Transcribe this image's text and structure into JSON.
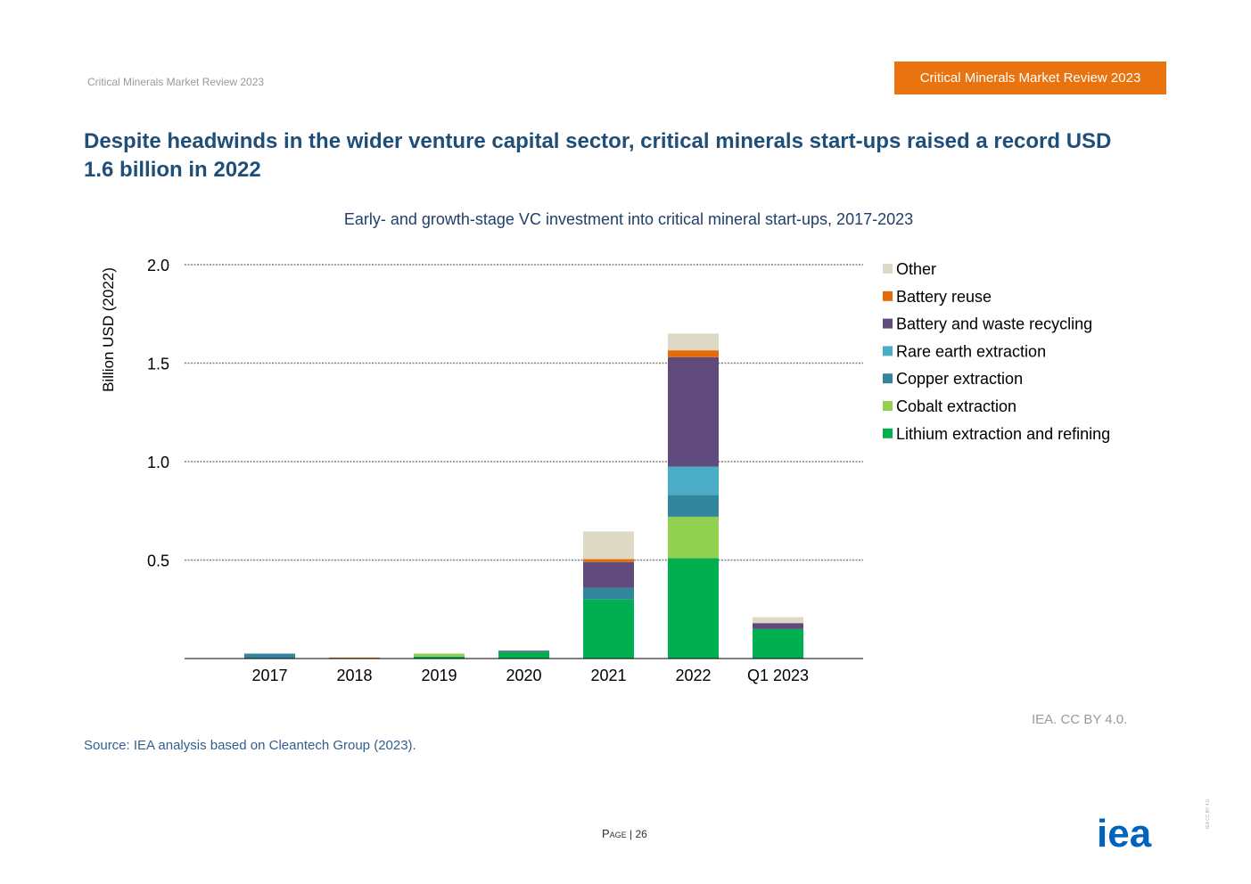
{
  "header": {
    "left_text": "Critical Minerals Market Review 2023",
    "badge_text": "Critical Minerals Market Review 2023",
    "badge_color": "#e8730f"
  },
  "title": "Despite headwinds in the wider venture capital sector, critical minerals start-ups raised a record USD 1.6 billion in 2022",
  "chart_data": {
    "type": "bar",
    "stacked": true,
    "title": "Early- and growth-stage VC investment into critical mineral start-ups, 2017-2023",
    "ylabel": "Billion USD (2022)",
    "xlabel": "",
    "ylim": [
      0,
      2.0
    ],
    "yticks": [
      "0.5",
      "1.0",
      "1.5",
      "2.0"
    ],
    "grid": true,
    "legend_position": "right",
    "categories": [
      "2017",
      "2018",
      "2019",
      "2020",
      "2021",
      "2022",
      "Q1 2023"
    ],
    "series": [
      {
        "name": "Lithium extraction and refining",
        "color": "#00b050",
        "values": [
          0.0,
          0.0,
          0.01,
          0.035,
          0.3,
          0.51,
          0.15
        ]
      },
      {
        "name": "Cobalt extraction",
        "color": "#92d050",
        "values": [
          0.0,
          0.0,
          0.015,
          0.0,
          0.0,
          0.21,
          0.0
        ]
      },
      {
        "name": "Copper extraction",
        "color": "#31859c",
        "values": [
          0.025,
          0.0,
          0.0,
          0.0,
          0.06,
          0.11,
          0.0
        ]
      },
      {
        "name": "Rare earth extraction",
        "color": "#4bacc6",
        "values": [
          0.0,
          0.0,
          0.0,
          0.0,
          0.0,
          0.145,
          0.0
        ]
      },
      {
        "name": "Battery and waste recycling",
        "color": "#604a7b",
        "values": [
          0.0,
          0.0,
          0.0,
          0.005,
          0.13,
          0.555,
          0.03
        ]
      },
      {
        "name": "Battery reuse",
        "color": "#e36c09",
        "values": [
          0.0,
          0.005,
          0.0,
          0.0,
          0.015,
          0.035,
          0.0
        ]
      },
      {
        "name": "Other",
        "color": "#ddd9c4",
        "values": [
          0.0,
          0.0,
          0.0,
          0.0,
          0.14,
          0.085,
          0.03
        ]
      }
    ]
  },
  "credit": "IEA. CC BY 4.0.",
  "source": "Source: IEA analysis based on Cleantech Group (2023).",
  "footer": {
    "page_label": "Page",
    "page_sep": " | ",
    "page_number": "26",
    "logo_text": "iea",
    "logo_color": "#0063be",
    "side_license": "IEA CC BY 4.0."
  }
}
